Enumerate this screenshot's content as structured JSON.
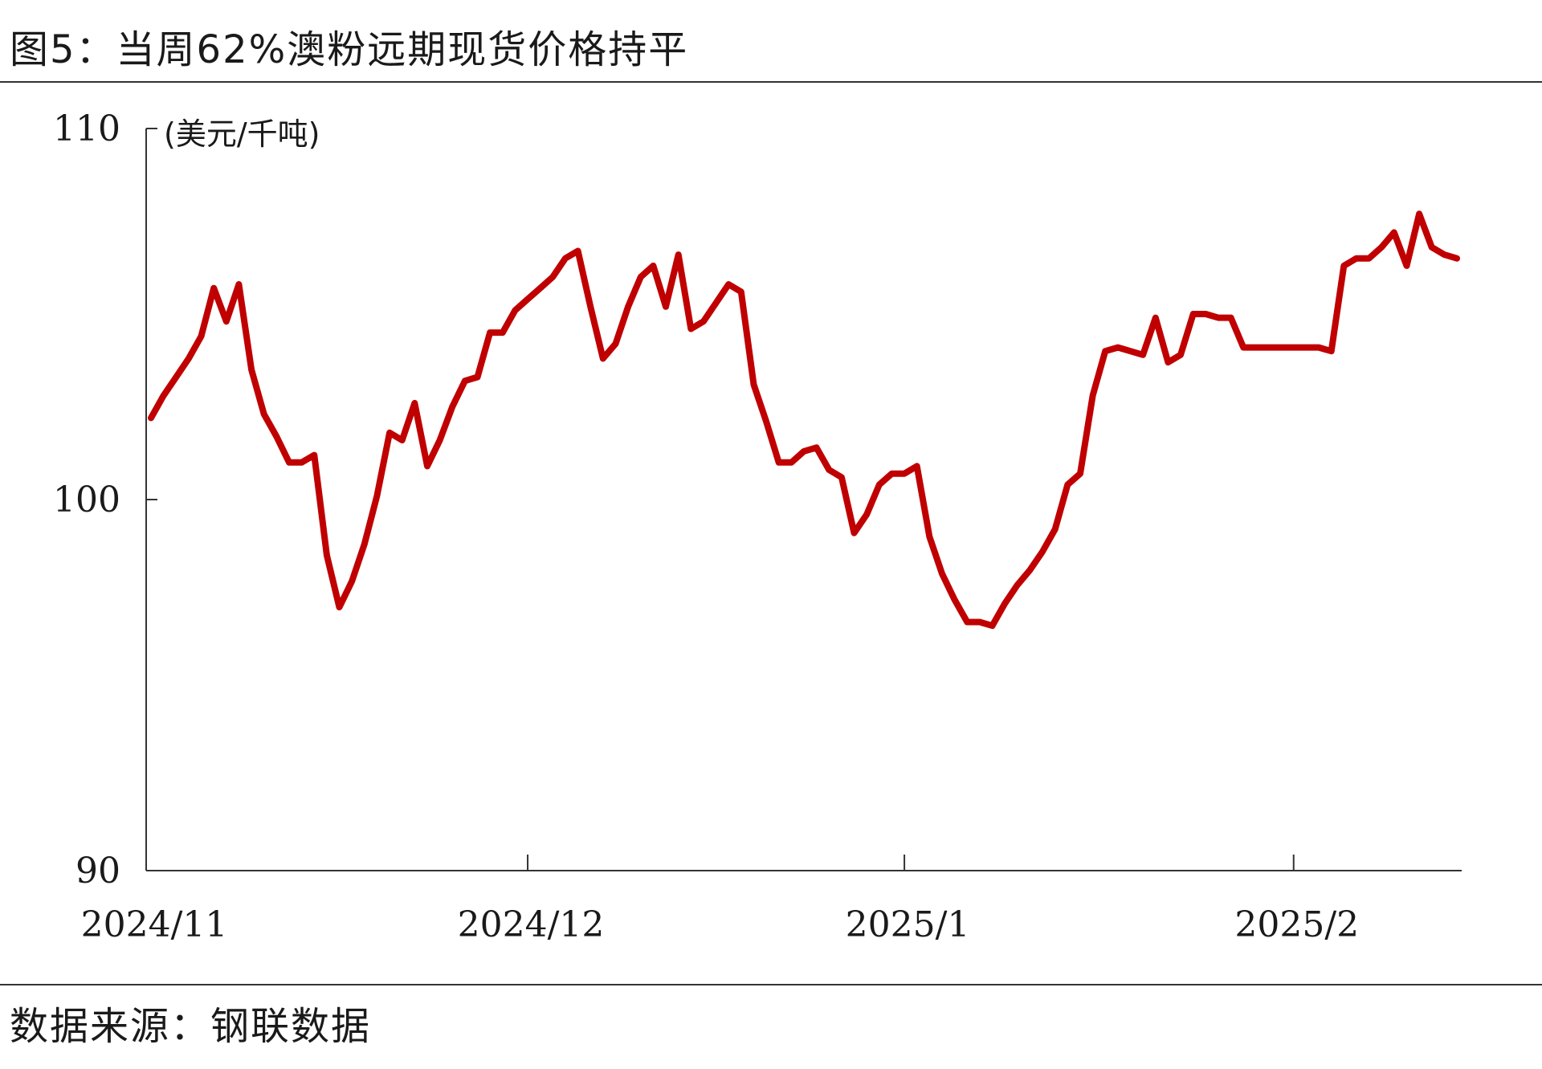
{
  "title": "图5：当周62%澳粉远期现货价格持平",
  "source": "数据来源：钢联数据",
  "chart_data": {
    "type": "line",
    "unit": "(美元/千吨)",
    "ylim": [
      90,
      110
    ],
    "yticks": [
      90,
      100,
      110
    ],
    "xticks": [
      {
        "label": "2024/11",
        "index": 0
      },
      {
        "label": "2024/12",
        "index": 30
      },
      {
        "label": "2025/1",
        "index": 60
      },
      {
        "label": "2025/2",
        "index": 91
      }
    ],
    "x_count": 105,
    "line_color": "#c00000",
    "series": [
      {
        "values": [
          102.2,
          102.8,
          103.3,
          103.8,
          104.4,
          105.7,
          104.8,
          105.8,
          103.5,
          102.3,
          101.7,
          101.0,
          101.0,
          101.2,
          98.5,
          97.1,
          97.8,
          98.8,
          100.1,
          101.8,
          101.6,
          102.6,
          100.9,
          101.6,
          102.5,
          103.2,
          103.3,
          104.5,
          104.5,
          105.1,
          105.4,
          105.7,
          106.0,
          106.5,
          106.7,
          105.2,
          103.8,
          104.2,
          105.2,
          106.0,
          106.3,
          105.2,
          106.6,
          104.6,
          104.8,
          105.3,
          105.8,
          105.6,
          103.1,
          102.1,
          101.0,
          101.0,
          101.3,
          101.4,
          100.8,
          100.6,
          99.1,
          99.6,
          100.4,
          100.7,
          100.7,
          100.9,
          99.0,
          98.0,
          97.3,
          96.7,
          96.7,
          96.6,
          97.2,
          97.7,
          98.1,
          98.6,
          99.2,
          100.4,
          100.7,
          102.8,
          104.0,
          104.1,
          104.0,
          103.9,
          104.9,
          103.7,
          103.9,
          105.0,
          105.0,
          104.9,
          104.9,
          104.1,
          104.1,
          104.1,
          104.1,
          104.1,
          104.1,
          104.1,
          104.0,
          106.3,
          106.5,
          106.5,
          106.8,
          107.2,
          106.3,
          107.7,
          106.8,
          106.6,
          106.5
        ]
      }
    ]
  }
}
